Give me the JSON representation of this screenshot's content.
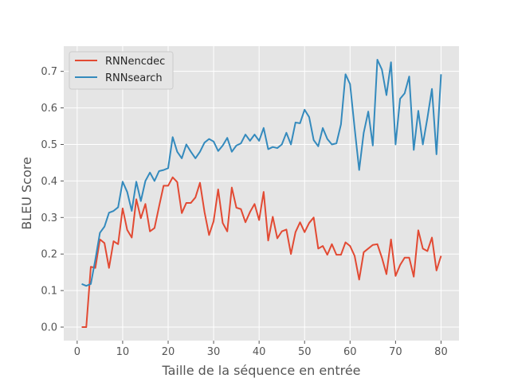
{
  "chart_data": {
    "type": "line",
    "xlabel": "Taille de la séquence en entrée",
    "ylabel": "BLEU Score",
    "xlim": [
      -2.95,
      83.95
    ],
    "ylim": [
      -0.037,
      0.769
    ],
    "xticks": [
      0,
      10,
      20,
      30,
      40,
      50,
      60,
      70,
      80
    ],
    "yticks": [
      0.0,
      0.1,
      0.2,
      0.3,
      0.4,
      0.5,
      0.6,
      0.7
    ],
    "grid": true,
    "legend_position": "top-left",
    "x": [
      1,
      2,
      3,
      4,
      5,
      6,
      7,
      8,
      9,
      10,
      11,
      12,
      13,
      14,
      15,
      16,
      17,
      18,
      19,
      20,
      21,
      22,
      23,
      24,
      25,
      26,
      27,
      28,
      29,
      30,
      31,
      32,
      33,
      34,
      35,
      36,
      37,
      38,
      39,
      40,
      41,
      42,
      43,
      44,
      45,
      46,
      47,
      48,
      49,
      50,
      51,
      52,
      53,
      54,
      55,
      56,
      57,
      58,
      59,
      60,
      61,
      62,
      63,
      64,
      65,
      66,
      67,
      68,
      69,
      70,
      71,
      72,
      73,
      74,
      75,
      76,
      77,
      78,
      79,
      80
    ],
    "series": [
      {
        "name": "RNNencdec",
        "color": "#E24A33",
        "values": [
          0.0,
          0.0,
          0.165,
          0.162,
          0.24,
          0.23,
          0.162,
          0.235,
          0.227,
          0.325,
          0.266,
          0.245,
          0.35,
          0.298,
          0.337,
          0.262,
          0.271,
          0.33,
          0.387,
          0.387,
          0.41,
          0.397,
          0.312,
          0.34,
          0.34,
          0.355,
          0.395,
          0.315,
          0.252,
          0.29,
          0.377,
          0.285,
          0.262,
          0.382,
          0.327,
          0.323,
          0.287,
          0.315,
          0.337,
          0.293,
          0.37,
          0.237,
          0.302,
          0.243,
          0.262,
          0.267,
          0.2,
          0.26,
          0.287,
          0.26,
          0.285,
          0.3,
          0.215,
          0.222,
          0.198,
          0.227,
          0.198,
          0.198,
          0.232,
          0.222,
          0.195,
          0.13,
          0.205,
          0.215,
          0.225,
          0.227,
          0.19,
          0.145,
          0.24,
          0.14,
          0.17,
          0.19,
          0.19,
          0.138,
          0.265,
          0.215,
          0.208,
          0.245,
          0.155,
          0.195
        ]
      },
      {
        "name": "RNNsearch",
        "color": "#348ABD",
        "values": [
          0.118,
          0.113,
          0.118,
          0.185,
          0.258,
          0.275,
          0.313,
          0.318,
          0.328,
          0.398,
          0.37,
          0.318,
          0.398,
          0.345,
          0.4,
          0.423,
          0.4,
          0.427,
          0.43,
          0.435,
          0.52,
          0.48,
          0.462,
          0.5,
          0.48,
          0.462,
          0.48,
          0.505,
          0.515,
          0.508,
          0.482,
          0.497,
          0.518,
          0.48,
          0.497,
          0.503,
          0.527,
          0.51,
          0.527,
          0.51,
          0.545,
          0.487,
          0.493,
          0.49,
          0.5,
          0.532,
          0.5,
          0.56,
          0.558,
          0.595,
          0.575,
          0.512,
          0.495,
          0.545,
          0.515,
          0.5,
          0.503,
          0.555,
          0.692,
          0.665,
          0.545,
          0.43,
          0.532,
          0.59,
          0.497,
          0.732,
          0.705,
          0.635,
          0.725,
          0.5,
          0.625,
          0.64,
          0.686,
          0.485,
          0.592,
          0.5,
          0.572,
          0.652,
          0.473,
          0.692
        ]
      }
    ]
  }
}
